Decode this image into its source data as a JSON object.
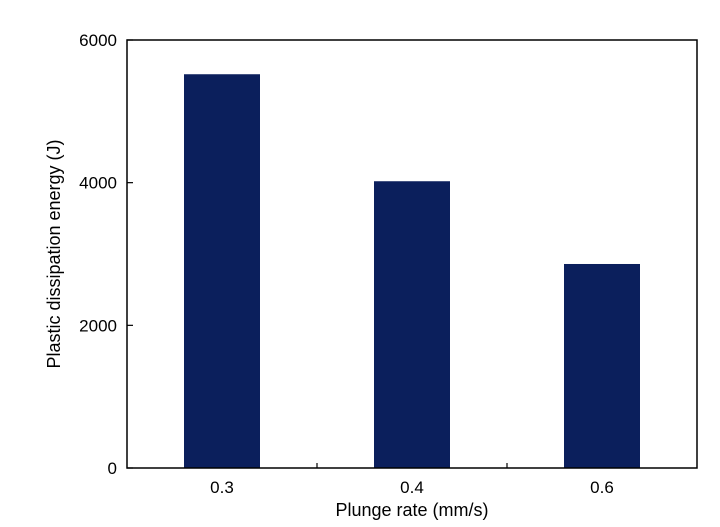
{
  "chart_data": {
    "type": "bar",
    "categories": [
      "0.3",
      "0.4",
      "0.6"
    ],
    "values": [
      5520,
      4020,
      2860
    ],
    "xlabel": "Plunge rate (mm/s)",
    "ylabel": "Plastic dissipation energy (J)",
    "ylim": [
      0,
      6000
    ],
    "yticks": [
      0,
      2000,
      4000,
      6000
    ],
    "grid": false,
    "bar_color": "#0b1f5c",
    "axis_color": "#000000"
  }
}
